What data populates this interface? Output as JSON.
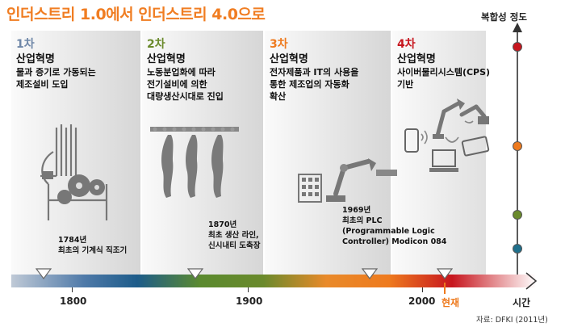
{
  "title": "인더스트리 1.0에서 인더스트리 4.0으로",
  "complexity_label": "복합성 정도",
  "time_label": "시간",
  "now_label": "현재",
  "source": "자료: DFKI (2011년)",
  "years": [
    "1800",
    "1900",
    "2000"
  ],
  "colors": {
    "stage1": "#6f87a8",
    "stage2": "#6a8a2c",
    "stage3": "#ee7a1e",
    "stage4": "#c7161e",
    "title": "#f07d22",
    "arrow": "#333333"
  },
  "stages": [
    {
      "num": "1차",
      "name": "산업혁명",
      "desc": [
        "물과 증기로 가동되는",
        "제조설비 도입"
      ],
      "icon": "mechanical-loom-icon"
    },
    {
      "num": "2차",
      "name": "산업혁명",
      "desc": [
        "노동분업화에 따라",
        "전기설비에 의한",
        "대량생산시대로 진입"
      ],
      "icon": "slaughterhouse-line-icon"
    },
    {
      "num": "3차",
      "name": "산업혁명",
      "desc": [
        "전자제품과 IT의 사용을",
        "통한 제조업의 자동화",
        "확산"
      ],
      "icon": "robot-arm-icon"
    },
    {
      "num": "4차",
      "name": "산업혁명",
      "desc": [
        "사이버물리시스템(CPS)",
        "기반"
      ],
      "icon": "cyber-physical-system-icon"
    }
  ],
  "events": [
    {
      "year": "1784년",
      "lines": [
        "최초의 기계식 직조기"
      ]
    },
    {
      "year": "1870년",
      "lines": [
        "최초 생산 라인,",
        "신시내티 도축장"
      ]
    },
    {
      "year": "1969년",
      "lines": [
        "최초의 PLC",
        "(Programmable Logic",
        "Controller) Modicon 084"
      ]
    }
  ]
}
